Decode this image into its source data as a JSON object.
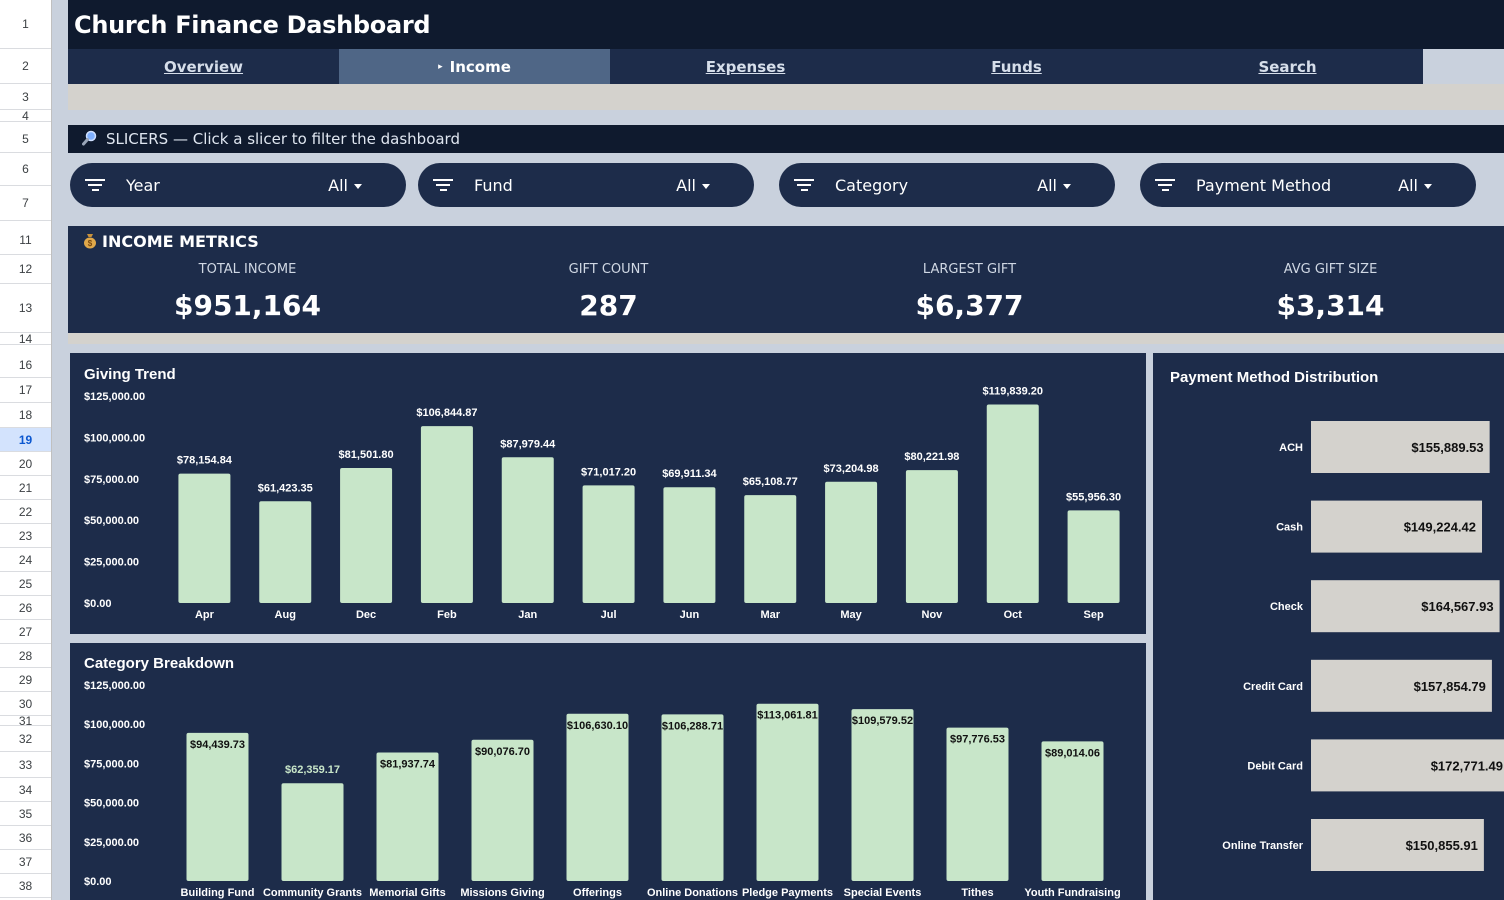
{
  "row_numbers": [
    {
      "n": "1",
      "top": 0,
      "h": 49
    },
    {
      "n": "2",
      "top": 49,
      "h": 35
    },
    {
      "n": "3",
      "top": 84,
      "h": 26
    },
    {
      "n": "4",
      "top": 110,
      "h": 12
    },
    {
      "n": "5",
      "top": 125,
      "h": 28
    },
    {
      "n": "6",
      "top": 153,
      "h": 33
    },
    {
      "n": "7",
      "top": 186,
      "h": 35
    },
    {
      "n": "11",
      "top": 226,
      "h": 29
    },
    {
      "n": "12",
      "top": 255,
      "h": 29
    },
    {
      "n": "13",
      "top": 284,
      "h": 49
    },
    {
      "n": "14",
      "top": 333,
      "h": 12
    },
    {
      "n": "16",
      "top": 353,
      "h": 25
    },
    {
      "n": "17",
      "top": 378,
      "h": 25
    },
    {
      "n": "18",
      "top": 403,
      "h": 25
    },
    {
      "n": "19",
      "top": 428,
      "h": 24
    },
    {
      "n": "20",
      "top": 452,
      "h": 24
    },
    {
      "n": "21",
      "top": 476,
      "h": 24
    },
    {
      "n": "22",
      "top": 500,
      "h": 24
    },
    {
      "n": "23",
      "top": 524,
      "h": 24
    },
    {
      "n": "24",
      "top": 548,
      "h": 24
    },
    {
      "n": "25",
      "top": 572,
      "h": 24
    },
    {
      "n": "26",
      "top": 596,
      "h": 24
    },
    {
      "n": "27",
      "top": 620,
      "h": 24
    },
    {
      "n": "28",
      "top": 644,
      "h": 24
    },
    {
      "n": "29",
      "top": 668,
      "h": 24
    },
    {
      "n": "30",
      "top": 692,
      "h": 24
    },
    {
      "n": "31",
      "top": 716,
      "h": 10
    },
    {
      "n": "32",
      "top": 726,
      "h": 26
    },
    {
      "n": "33",
      "top": 752,
      "h": 26
    },
    {
      "n": "34",
      "top": 778,
      "h": 24
    },
    {
      "n": "35",
      "top": 802,
      "h": 24
    },
    {
      "n": "36",
      "top": 826,
      "h": 24
    },
    {
      "n": "37",
      "top": 850,
      "h": 24
    },
    {
      "n": "38",
      "top": 874,
      "h": 24
    }
  ],
  "active_row": "19",
  "title": "Church Finance Dashboard",
  "nav": {
    "tabs": [
      {
        "label": "Overview",
        "active": false
      },
      {
        "label": "Income",
        "active": true,
        "arrow": "▸"
      },
      {
        "label": "Expenses",
        "active": false
      },
      {
        "label": "Funds",
        "active": false
      },
      {
        "label": "Search",
        "active": false
      }
    ]
  },
  "slicers_header": {
    "icon": "magnifier-icon",
    "text": "SLICERS — Click a slicer to filter the dashboard"
  },
  "slicers": [
    {
      "label": "Year",
      "value": "All"
    },
    {
      "label": "Fund",
      "value": "All"
    },
    {
      "label": "Category",
      "value": "All"
    },
    {
      "label": "Payment Method",
      "value": "All"
    }
  ],
  "metrics": {
    "icon": "money-bag-icon",
    "title": "INCOME METRICS",
    "items": [
      {
        "label": "TOTAL INCOME",
        "value": "$951,164"
      },
      {
        "label": "GIFT COUNT",
        "value": "287"
      },
      {
        "label": "LARGEST GIFT",
        "value": "$6,377"
      },
      {
        "label": "AVG GIFT SIZE",
        "value": "$3,314"
      }
    ]
  },
  "colors": {
    "navy": "#1d2c4a",
    "dark": "#0f1a2e",
    "bar_green": "#c8e6c9",
    "bar_gray": "#d4d2cd",
    "active_tab": "#4f6686"
  },
  "chart_data": [
    {
      "id": "giving-trend",
      "type": "bar",
      "title": "Giving Trend",
      "categories": [
        "Apr",
        "Aug",
        "Dec",
        "Feb",
        "Jan",
        "Jul",
        "Jun",
        "Mar",
        "May",
        "Nov",
        "Oct",
        "Sep"
      ],
      "values": [
        78154.84,
        61423.35,
        81501.8,
        106844.87,
        87979.44,
        71017.2,
        69911.34,
        65108.77,
        73204.98,
        80221.98,
        119839.2,
        55956.3
      ],
      "labels": [
        "$78,154.84",
        "$61,423.35",
        "$81,501.80",
        "$106,844.87",
        "$87,979.44",
        "$71,017.20",
        "$69,911.34",
        "$65,108.77",
        "$73,204.98",
        "$80,221.98",
        "$119,839.20",
        "$55,956.30"
      ],
      "ylim": [
        0,
        125000
      ],
      "yticks": [
        "$0.00",
        "$25,000.00",
        "$50,000.00",
        "$75,000.00",
        "$100,000.00",
        "$125,000.00"
      ],
      "label_position": "above"
    },
    {
      "id": "category-breakdown",
      "type": "bar",
      "title": "Category Breakdown",
      "categories": [
        "Building Fund",
        "Community Grants",
        "Memorial Gifts",
        "Missions Giving",
        "Offerings",
        "Online Donations",
        "Pledge Payments",
        "Special Events",
        "Tithes",
        "Youth Fundraising"
      ],
      "values": [
        94439.73,
        62359.17,
        81937.74,
        90076.7,
        106630.1,
        106288.71,
        113061.81,
        109579.52,
        97776.53,
        89014.06
      ],
      "labels": [
        "$94,439.73",
        "$62,359.17",
        "$81,937.74",
        "$90,076.70",
        "$106,630.10",
        "$106,288.71",
        "$113,061.81",
        "$109,579.52",
        "$97,776.53",
        "$89,014.06"
      ],
      "ylim": [
        0,
        125000
      ],
      "yticks": [
        "$0.00",
        "$25,000.00",
        "$50,000.00",
        "$75,000.00",
        "$100,000.00",
        "$125,000.00"
      ],
      "label_position": "inside-top-if-fits"
    },
    {
      "id": "payment-method-distribution",
      "type": "bar",
      "orientation": "horizontal",
      "title": "Payment Method Distribution",
      "categories": [
        "ACH",
        "Cash",
        "Check",
        "Credit Card",
        "Debit Card",
        "Online Transfer"
      ],
      "values": [
        155889.53,
        149224.42,
        164567.93,
        157854.79,
        172771.49,
        150855.91
      ],
      "labels": [
        "$155,889.53",
        "$149,224.42",
        "$164,567.93",
        "$157,854.79",
        "$172,771.49",
        "$150,855.91"
      ],
      "label_position": "inside-end"
    }
  ]
}
